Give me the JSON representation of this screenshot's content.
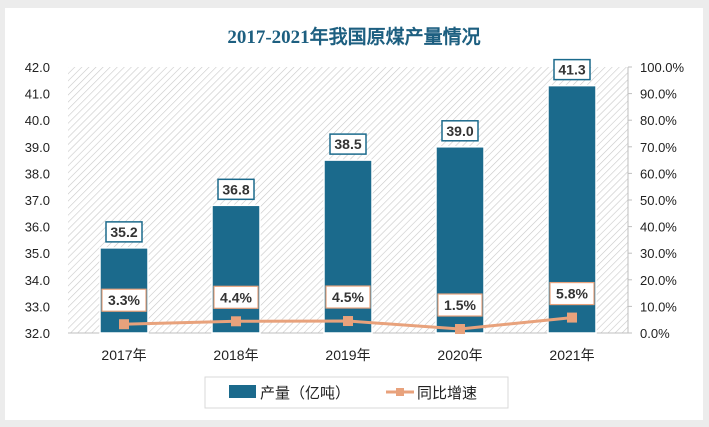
{
  "chart_data": {
    "type": "bar+line",
    "title": "2017-2021年我国原煤产量情况",
    "categories": [
      "2017年",
      "2018年",
      "2019年",
      "2020年",
      "2021年"
    ],
    "series": [
      {
        "name": "产量（亿吨）",
        "type": "bar",
        "axis": "left",
        "values": [
          35.2,
          36.8,
          38.5,
          39.0,
          41.3
        ],
        "labels": [
          "35.2",
          "36.8",
          "38.5",
          "39.0",
          "41.3"
        ],
        "color": "#1b6a8c"
      },
      {
        "name": "同比增速",
        "type": "line",
        "axis": "right",
        "values": [
          3.3,
          4.4,
          4.5,
          1.5,
          5.8
        ],
        "labels": [
          "3.3%",
          "4.4%",
          "4.5%",
          "1.5%",
          "5.8%"
        ],
        "color": "#e8a27c"
      }
    ],
    "y_left": {
      "range": [
        32.0,
        42.0
      ],
      "ticks": [
        "32.0",
        "33.0",
        "34.0",
        "35.0",
        "36.0",
        "37.0",
        "38.0",
        "39.0",
        "40.0",
        "41.0",
        "42.0"
      ]
    },
    "y_right": {
      "range": [
        0,
        100
      ],
      "ticks": [
        "0.0%",
        "10.0%",
        "20.0%",
        "30.0%",
        "40.0%",
        "50.0%",
        "60.0%",
        "70.0%",
        "80.0%",
        "90.0%",
        "100.0%"
      ]
    },
    "legend": "bottom",
    "grid": false,
    "title_color": "#1d5f80"
  }
}
